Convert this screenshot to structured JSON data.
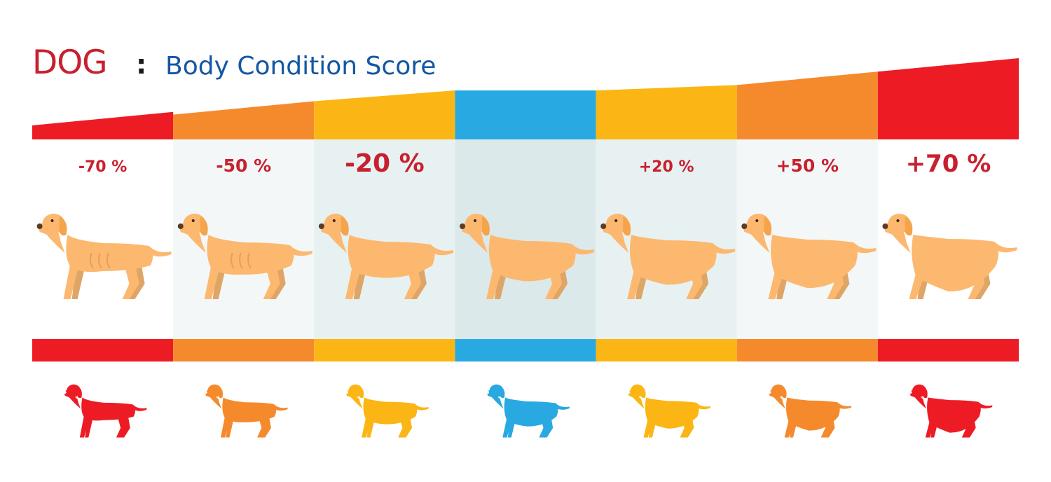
{
  "header": {
    "species": "DOG",
    "separator": ":",
    "subtitle": "Body Condition Score"
  },
  "colors": {
    "red": "#ed1c24",
    "orange": "#f58a2d",
    "yellow": "#fbb615",
    "blue": "#28a9e1",
    "label_red": "#c8202e",
    "title_blue": "#1457a3",
    "dog_body": "#fcb86f",
    "dog_shade": "#dea566"
  },
  "scale": [
    {
      "label": "-70 %",
      "color": "red",
      "band_level": 0.16,
      "body_level": 0.0
    },
    {
      "label": "-50 %",
      "color": "orange",
      "band_level": 0.36,
      "body_level": 0.17
    },
    {
      "label": "-20 %",
      "color": "yellow",
      "band_level": 0.52,
      "body_level": 0.33
    },
    {
      "label": "",
      "color": "blue",
      "band_level": 0.52,
      "body_level": 0.5
    },
    {
      "label": "+20 %",
      "color": "yellow",
      "band_level": 0.6,
      "body_level": 0.67
    },
    {
      "label": "+50 %",
      "color": "orange",
      "band_level": 0.8,
      "body_level": 0.83
    },
    {
      "label": "+70 %",
      "color": "red",
      "band_level": 1.0,
      "body_level": 1.0
    }
  ]
}
